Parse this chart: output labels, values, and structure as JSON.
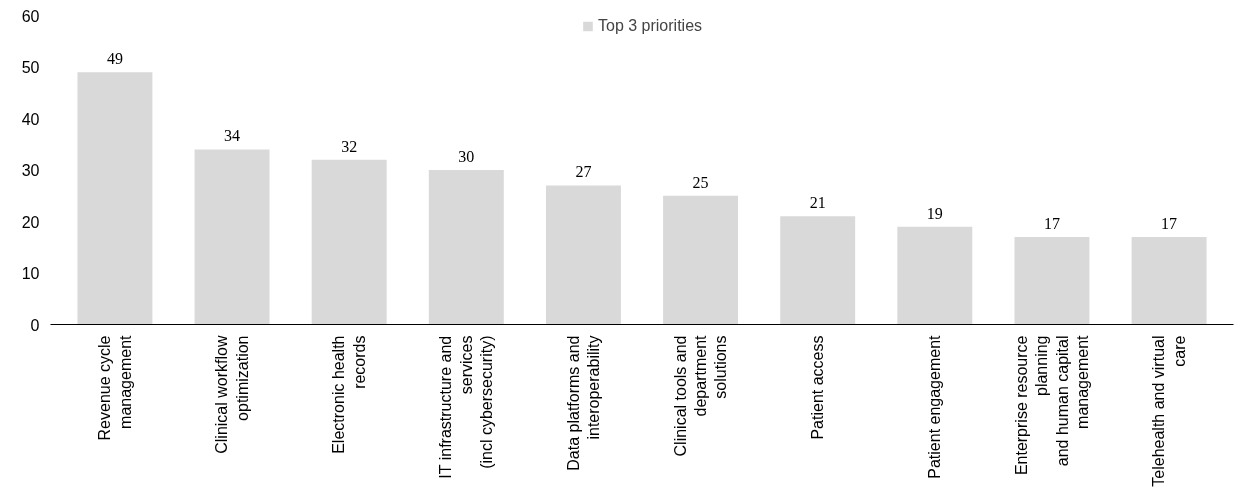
{
  "chart_data": {
    "type": "bar",
    "categories": [
      "Revenue cycle\nmanagement",
      "Clinical workflow\noptimization",
      "Electronic health\nrecords",
      "IT infrastructure and\nservices\n(incl cybersecurity)",
      "Data platforms and\ninteroperability",
      "Clinical tools and\ndepartment\nsolutions",
      "Patient access",
      "Patient engagement",
      "Enterprise resource\nplanning\nand human capital\nmanagement",
      "Telehealth and virtual\ncare"
    ],
    "series": [
      {
        "name": "Top 3 priorities",
        "color": "#d9d9d9",
        "values": [
          49,
          34,
          32,
          30,
          27,
          25,
          21,
          19,
          17,
          17
        ]
      }
    ],
    "ylim": [
      0,
      60
    ],
    "yticks": [
      0,
      10,
      20,
      30,
      40,
      50,
      60
    ],
    "data_labels": true,
    "grid": false,
    "legend": "top"
  }
}
